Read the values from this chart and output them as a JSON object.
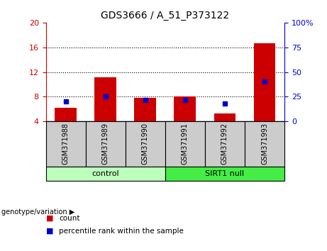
{
  "title": "GDS3666 / A_51_P373122",
  "samples": [
    "GSM371988",
    "GSM371989",
    "GSM371990",
    "GSM371991",
    "GSM371992",
    "GSM371993"
  ],
  "count_values": [
    6.2,
    11.2,
    7.8,
    8.1,
    5.3,
    16.7
  ],
  "percentile_values": [
    20,
    25,
    22,
    22,
    18,
    40
  ],
  "baseline": 4,
  "left_ylim": [
    4,
    20
  ],
  "right_ylim": [
    0,
    100
  ],
  "left_yticks": [
    4,
    8,
    12,
    16,
    20
  ],
  "right_yticks": [
    0,
    25,
    50,
    75,
    100
  ],
  "right_yticklabels": [
    "0",
    "25",
    "50",
    "75",
    "100%"
  ],
  "left_ycolor": "#cc0000",
  "right_ycolor": "#0000cc",
  "bar_color": "#cc0000",
  "dot_color": "#0000cc",
  "control_label": "control",
  "sirt1_label": "SIRT1 null",
  "group_label": "genotype/variation",
  "legend_count": "count",
  "legend_percentile": "percentile rank within the sample",
  "control_bg": "#bbffbb",
  "sirt1_bg": "#44ee44",
  "sample_bg": "#cccccc",
  "gridline_ticks": [
    8,
    12,
    16
  ],
  "figsize": [
    4.61,
    3.54
  ],
  "dpi": 100
}
